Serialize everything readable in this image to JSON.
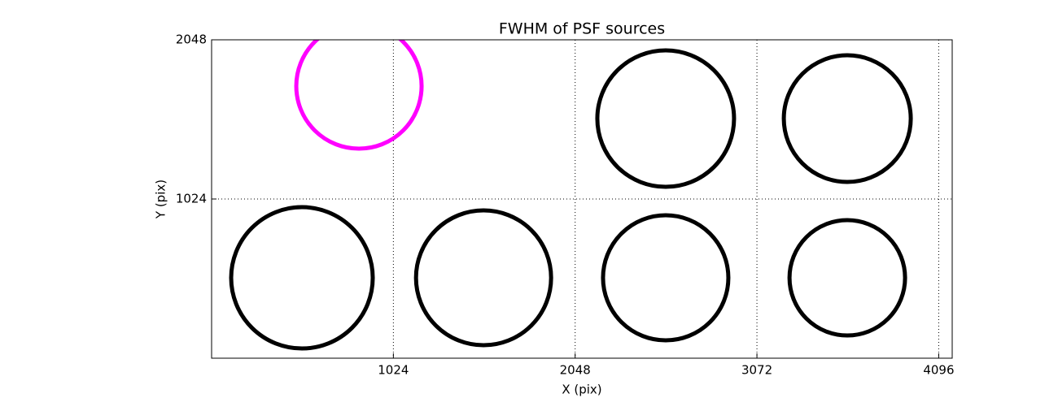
{
  "chart_data": {
    "type": "scatter",
    "title": "FWHM of PSF sources",
    "x_label": "X (pix)",
    "y_label": "Y (pix)",
    "x": [
      509,
      1532,
      2558,
      3581,
      2558,
      3581,
      830
    ],
    "y": [
      517,
      517,
      517,
      517,
      1541,
      1541,
      1750
    ],
    "sizes": [
      8.7,
      8.3,
      7.7,
      7.1,
      8.4,
      7.8,
      7.7
    ],
    "colors": [
      "#000000",
      "#000000",
      "#000000",
      "#000000",
      "#000000",
      "#000000",
      "#ff00ff"
    ],
    "xlim": [
      0,
      4172
    ],
    "ylim": [
      0,
      2048
    ],
    "xticks": [
      1024,
      2048,
      3072,
      4096
    ],
    "yticks": [
      1024,
      2048
    ],
    "grid": true
  }
}
